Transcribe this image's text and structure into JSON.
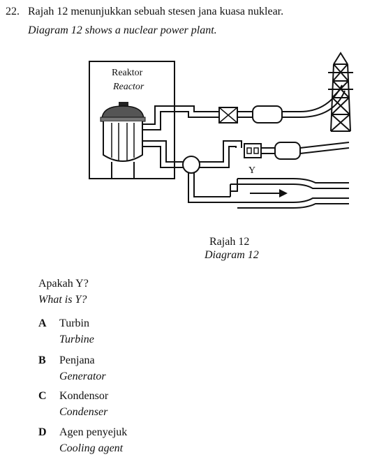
{
  "question": {
    "number": "22.",
    "text_ms": "Rajah 12 menunjukkan sebuah stesen jana kuasa nuklear.",
    "text_en": "Diagram 12 shows a nuclear power plant."
  },
  "diagram": {
    "reactor_label_ms": "Reaktor",
    "reactor_label_en": "Reactor",
    "y_label": "Y",
    "caption_ms": "Rajah 12",
    "caption_en": "Diagram 12"
  },
  "ask": {
    "text_ms": "Apakah Y?",
    "text_en": "What is Y?"
  },
  "options": [
    {
      "letter": "A",
      "text_ms": "Turbin",
      "text_en": "Turbine"
    },
    {
      "letter": "B",
      "text_ms": "Penjana",
      "text_en": "Generator"
    },
    {
      "letter": "C",
      "text_ms": "Kondensor",
      "text_en": "Condenser"
    },
    {
      "letter": "D",
      "text_ms": "Agen penyejuk",
      "text_en": "Cooling agent"
    }
  ]
}
